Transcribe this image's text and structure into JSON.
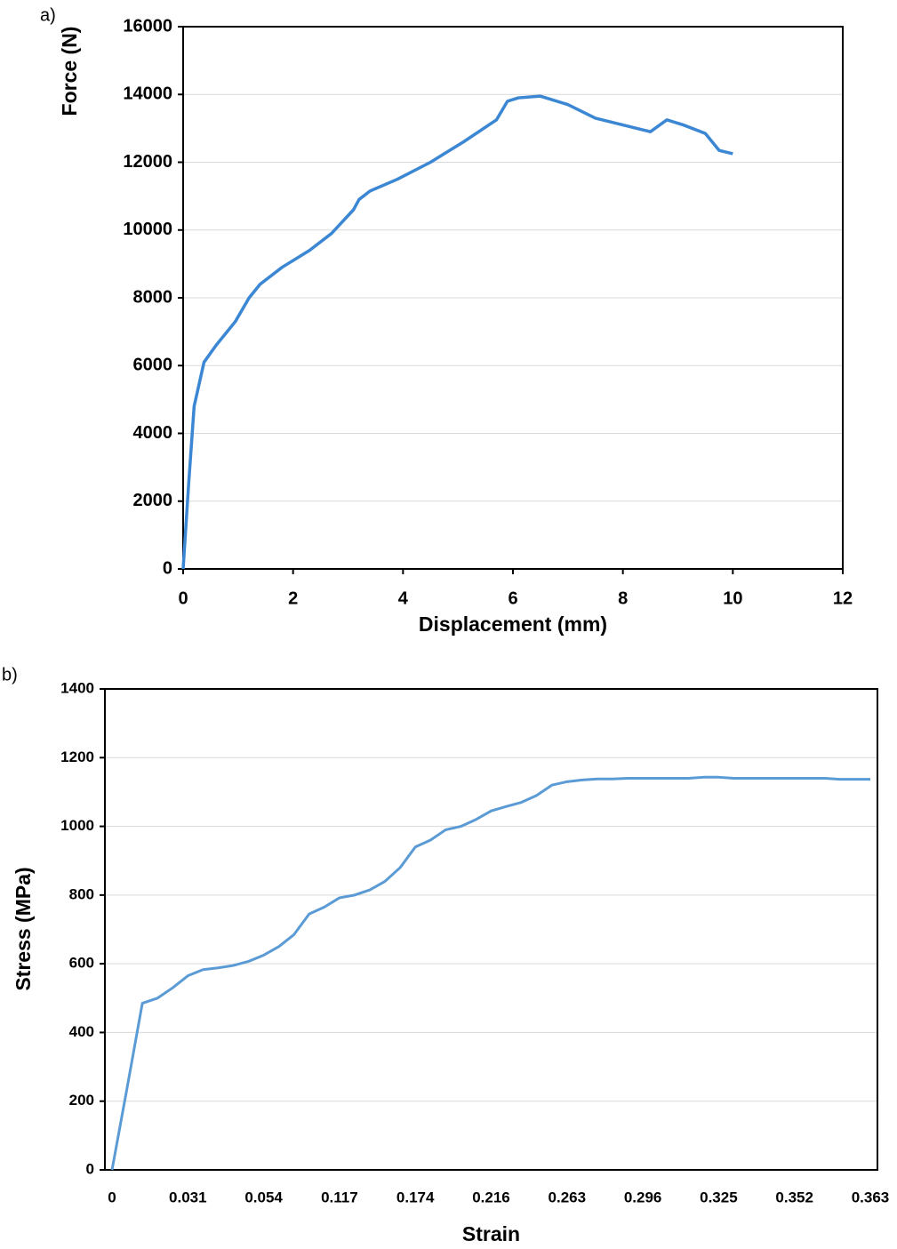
{
  "chart_data": [
    {
      "type": "line",
      "label": "a)",
      "xlabel": "Displacement (mm)",
      "ylabel": "Force (N)",
      "x": [
        0,
        0.1,
        0.2,
        0.38,
        0.6,
        0.95,
        1.2,
        1.4,
        1.8,
        2.3,
        2.7,
        3.1,
        3.2,
        3.4,
        3.9,
        4.5,
        5.1,
        5.7,
        5.9,
        6.1,
        6.5,
        7.0,
        7.5,
        8.0,
        8.5,
        8.8,
        9.1,
        9.5,
        9.75,
        10.0
      ],
      "series": [
        {
          "color": "#3b87d4",
          "values": [
            0,
            2500,
            4800,
            6100,
            6600,
            7300,
            8000,
            8400,
            8900,
            9400,
            9900,
            10600,
            10900,
            11150,
            11500,
            12000,
            12600,
            13250,
            13800,
            13900,
            13950,
            13700,
            13300,
            13100,
            12900,
            13250,
            13100,
            12850,
            12350,
            12250
          ]
        }
      ],
      "xlim": [
        0,
        12
      ],
      "xticks": [
        0,
        2,
        4,
        6,
        8,
        10,
        12
      ],
      "ylim": [
        0,
        16000
      ],
      "yticks": [
        0,
        2000,
        4000,
        6000,
        8000,
        10000,
        12000,
        14000,
        16000
      ],
      "grid": true
    },
    {
      "type": "line",
      "label": "b)",
      "xlabel": "Strain",
      "ylabel": "Stress (MPa)",
      "categories": [
        "0",
        null,
        null,
        null,
        null,
        "0.031",
        null,
        null,
        null,
        null,
        "0.054",
        null,
        null,
        null,
        null,
        "0.117",
        null,
        null,
        null,
        null,
        "0.174",
        null,
        null,
        null,
        null,
        "0.216",
        null,
        null,
        null,
        null,
        "0.263",
        null,
        null,
        null,
        null,
        "0.296",
        null,
        null,
        null,
        null,
        "0.325",
        null,
        null,
        null,
        null,
        "0.352",
        null,
        null,
        null,
        null,
        "0.363"
      ],
      "series": [
        {
          "color": "#5b9bd5",
          "values": [
            0,
            240,
            485,
            500,
            530,
            565,
            583,
            588,
            595,
            607,
            625,
            650,
            685,
            745,
            765,
            792,
            800,
            815,
            840,
            880,
            940,
            960,
            990,
            1000,
            1020,
            1045,
            1058,
            1070,
            1090,
            1120,
            1130,
            1135,
            1138,
            1138,
            1140,
            1140,
            1140,
            1140,
            1140,
            1143,
            1143,
            1140,
            1140,
            1140,
            1140,
            1140,
            1140,
            1140,
            1137,
            1137,
            1137
          ]
        }
      ],
      "ylim": [
        0,
        1400
      ],
      "yticks": [
        0,
        200,
        400,
        600,
        800,
        1000,
        1200,
        1400
      ],
      "grid": true
    }
  ]
}
